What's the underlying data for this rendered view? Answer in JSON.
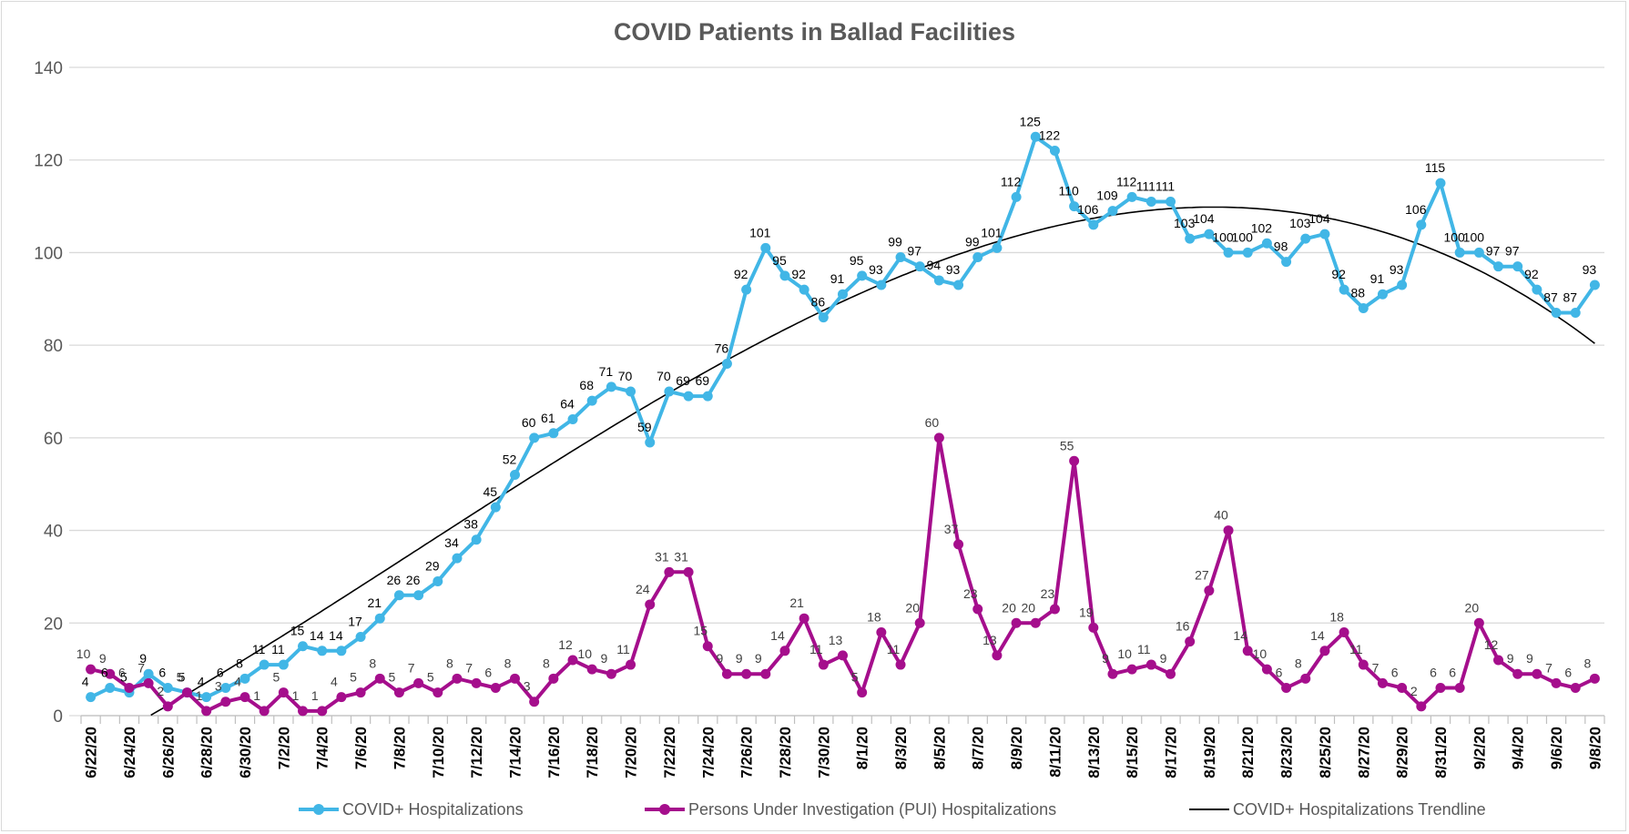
{
  "chart_data": {
    "type": "line",
    "title": "COVID Patients in Ballad Facilities",
    "xlabel": "",
    "ylabel": "",
    "ylim": [
      0,
      140
    ],
    "yticks": [
      "0",
      "20",
      "40",
      "60",
      "80",
      "100",
      "120",
      "140"
    ],
    "grid": true,
    "legend_position": "bottom",
    "categories": [
      "6/22/20",
      "6/23/20",
      "6/24/20",
      "6/25/20",
      "6/26/20",
      "6/27/20",
      "6/28/20",
      "6/29/20",
      "6/30/20",
      "7/1/20",
      "7/2/20",
      "7/3/20",
      "7/4/20",
      "7/5/20",
      "7/6/20",
      "7/7/20",
      "7/8/20",
      "7/9/20",
      "7/10/20",
      "7/11/20",
      "7/12/20",
      "7/13/20",
      "7/14/20",
      "7/15/20",
      "7/16/20",
      "7/17/20",
      "7/18/20",
      "7/19/20",
      "7/20/20",
      "7/21/20",
      "7/22/20",
      "7/23/20",
      "7/24/20",
      "7/25/20",
      "7/26/20",
      "7/27/20",
      "7/28/20",
      "7/29/20",
      "7/30/20",
      "7/31/20",
      "8/1/20",
      "8/2/20",
      "8/3/20",
      "8/4/20",
      "8/5/20",
      "8/6/20",
      "8/7/20",
      "8/8/20",
      "8/9/20",
      "8/10/20",
      "8/11/20",
      "8/12/20",
      "8/13/20",
      "8/14/20",
      "8/15/20",
      "8/16/20",
      "8/17/20",
      "8/18/20",
      "8/19/20",
      "8/20/20",
      "8/21/20",
      "8/22/20",
      "8/23/20",
      "8/24/20",
      "8/25/20",
      "8/26/20",
      "8/27/20",
      "8/28/20",
      "8/29/20",
      "8/30/20",
      "8/31/20",
      "9/1/20",
      "9/2/20",
      "9/3/20",
      "9/4/20",
      "9/5/20",
      "9/6/20",
      "9/7/20",
      "9/8/20"
    ],
    "visible_x_ticks": [
      "6/22/20",
      "6/24/20",
      "6/26/20",
      "6/28/20",
      "6/30/20",
      "7/2/20",
      "7/4/20",
      "7/6/20",
      "7/8/20",
      "7/10/20",
      "7/12/20",
      "7/14/20",
      "7/16/20",
      "7/18/20",
      "7/20/20",
      "7/22/20",
      "7/24/20",
      "7/26/20",
      "7/28/20",
      "7/30/20",
      "8/1/20",
      "8/3/20",
      "8/5/20",
      "8/7/20",
      "8/9/20",
      "8/11/20",
      "8/13/20",
      "8/15/20",
      "8/17/20",
      "8/19/20",
      "8/21/20",
      "8/23/20",
      "8/25/20",
      "8/27/20",
      "8/29/20",
      "8/31/20",
      "9/2/20",
      "9/4/20",
      "9/6/20",
      "9/8/20"
    ],
    "series": [
      {
        "name": "COVID+ Hospitalizations",
        "color": "#41b6e6",
        "values": [
          4,
          6,
          5,
          9,
          6,
          5,
          4,
          6,
          8,
          11,
          11,
          15,
          14,
          14,
          17,
          21,
          26,
          26,
          29,
          34,
          38,
          45,
          52,
          60,
          61,
          64,
          68,
          71,
          70,
          59,
          70,
          69,
          69,
          76,
          92,
          101,
          95,
          92,
          86,
          91,
          95,
          93,
          99,
          97,
          94,
          93,
          99,
          101,
          112,
          125,
          122,
          110,
          106,
          109,
          112,
          111,
          111,
          103,
          104,
          100,
          100,
          102,
          98,
          103,
          104,
          92,
          88,
          91,
          93,
          106,
          115,
          100,
          100,
          97,
          97,
          92,
          87,
          87,
          93
        ]
      },
      {
        "name": "Persons Under Investigation (PUI) Hospitalizations",
        "color": "#a50e8c",
        "values": [
          10,
          9,
          6,
          7,
          2,
          5,
          1,
          3,
          4,
          1,
          5,
          1,
          1,
          4,
          5,
          8,
          5,
          7,
          5,
          8,
          7,
          6,
          8,
          3,
          8,
          12,
          10,
          9,
          11,
          24,
          31,
          31,
          15,
          9,
          9,
          9,
          14,
          21,
          11,
          13,
          5,
          18,
          11,
          20,
          60,
          37,
          23,
          13,
          20,
          20,
          23,
          55,
          19,
          9,
          10,
          11,
          9,
          16,
          27,
          40,
          14,
          10,
          6,
          8,
          14,
          18,
          11,
          7,
          6,
          2,
          6,
          6,
          20,
          12,
          9,
          9,
          7,
          6,
          8
        ]
      }
    ],
    "trendline": {
      "name": "COVID+ Hospitalizations Trendline",
      "color": "#000000",
      "type": "polynomial"
    }
  }
}
